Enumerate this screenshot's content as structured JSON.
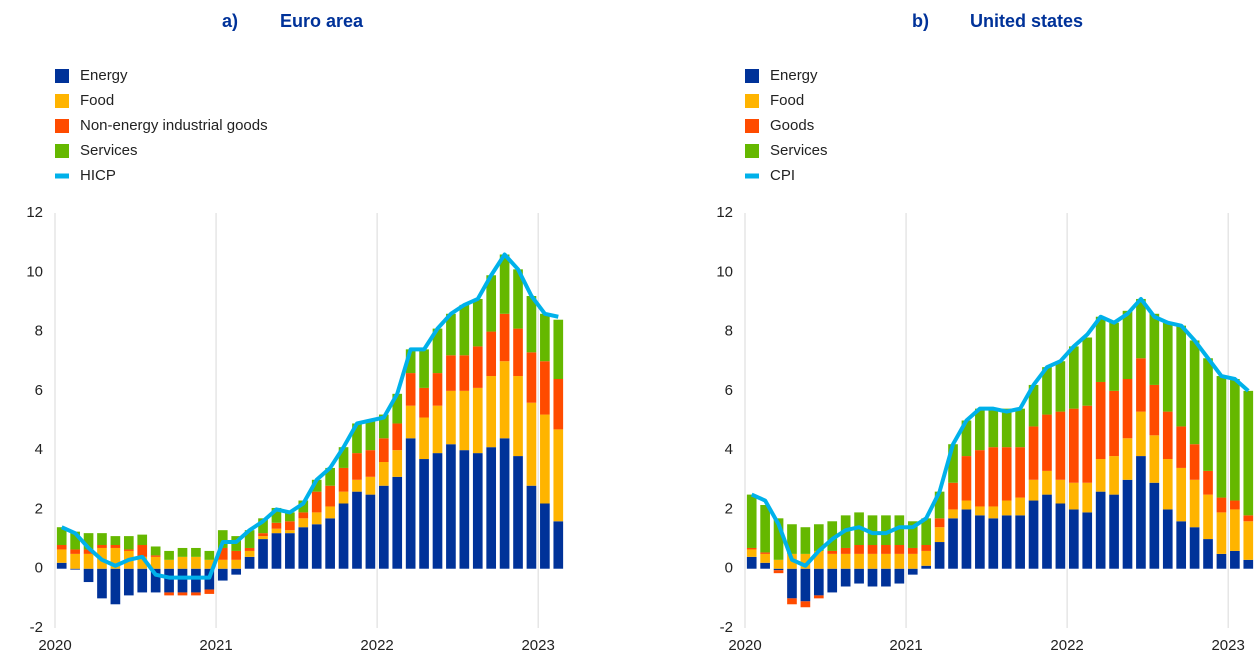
{
  "chart_data": [
    {
      "type": "bar",
      "label": "a)",
      "title": "Euro area",
      "stacked": true,
      "categories": [
        "2020",
        null,
        null,
        null,
        null,
        null,
        null,
        null,
        null,
        null,
        null,
        null,
        "2021",
        null,
        null,
        null,
        null,
        null,
        null,
        null,
        null,
        null,
        null,
        null,
        "2022",
        null,
        null,
        null,
        null,
        null,
        null,
        null,
        null,
        null,
        null,
        null,
        "2023",
        null
      ],
      "ylim": [
        -2,
        12
      ],
      "yticks": [
        -2,
        0,
        2,
        4,
        6,
        8,
        10,
        12
      ],
      "grid": "x",
      "series": [
        {
          "name": "Energy",
          "color": "#003299",
          "values": [
            0.2,
            -0.03,
            -0.45,
            -1.0,
            -1.2,
            -0.9,
            -0.8,
            -0.8,
            -0.8,
            -0.8,
            -0.8,
            -0.7,
            -0.4,
            -0.2,
            0.4,
            1.0,
            1.2,
            1.2,
            1.4,
            1.5,
            1.7,
            2.2,
            2.6,
            2.5,
            2.8,
            3.1,
            4.4,
            3.7,
            3.9,
            4.2,
            4.0,
            3.9,
            4.1,
            4.4,
            3.8,
            2.8,
            2.2,
            1.6
          ]
        },
        {
          "name": "Food",
          "color": "#ffb400",
          "values": [
            0.45,
            0.5,
            0.5,
            0.7,
            0.7,
            0.6,
            0.4,
            0.4,
            0.3,
            0.4,
            0.4,
            0.3,
            0.3,
            0.3,
            0.2,
            0.1,
            0.15,
            0.1,
            0.3,
            0.4,
            0.4,
            0.4,
            0.4,
            0.6,
            0.8,
            0.9,
            1.1,
            1.4,
            1.6,
            1.8,
            2.0,
            2.2,
            2.4,
            2.6,
            2.7,
            2.8,
            3.0,
            3.1
          ]
        },
        {
          "name": "Non-energy industrial goods",
          "color": "#ff4b00",
          "values": [
            0.15,
            0.15,
            0.15,
            0.1,
            0.1,
            0.05,
            0.4,
            0.05,
            -0.1,
            -0.1,
            -0.1,
            -0.15,
            0.4,
            0.3,
            0.1,
            0.1,
            0.2,
            0.3,
            0.2,
            0.7,
            0.7,
            0.8,
            0.9,
            0.9,
            0.8,
            0.9,
            1.1,
            1.0,
            1.1,
            1.2,
            1.2,
            1.4,
            1.5,
            1.6,
            1.6,
            1.7,
            1.8,
            1.7
          ]
        },
        {
          "name": "Services",
          "color": "#65b800",
          "values": [
            0.6,
            0.6,
            0.55,
            0.4,
            0.3,
            0.45,
            0.35,
            0.3,
            0.3,
            0.3,
            0.3,
            0.3,
            0.6,
            0.5,
            0.6,
            0.5,
            0.5,
            0.3,
            0.4,
            0.4,
            0.6,
            0.7,
            1.0,
            1.0,
            0.8,
            1.0,
            0.8,
            1.3,
            1.5,
            1.4,
            1.7,
            1.6,
            1.9,
            2.0,
            2.0,
            1.9,
            1.6,
            2.0
          ]
        },
        {
          "name": "HICP",
          "color": "#00b1ea",
          "type": "line",
          "values": [
            1.4,
            1.2,
            0.7,
            0.3,
            0.1,
            0.3,
            0.4,
            -0.2,
            -0.3,
            -0.3,
            -0.3,
            -0.3,
            0.9,
            0.9,
            1.3,
            1.6,
            2.0,
            1.9,
            2.2,
            3.0,
            3.4,
            4.1,
            4.9,
            5.0,
            5.1,
            5.9,
            7.4,
            7.4,
            8.1,
            8.6,
            8.9,
            9.1,
            9.9,
            10.6,
            10.1,
            9.2,
            8.6,
            8.5
          ]
        }
      ]
    },
    {
      "type": "bar",
      "label": "b)",
      "title": "United states",
      "stacked": true,
      "categories": [
        "2020",
        null,
        null,
        null,
        null,
        null,
        null,
        null,
        null,
        null,
        null,
        null,
        "2021",
        null,
        null,
        null,
        null,
        null,
        null,
        null,
        null,
        null,
        null,
        null,
        "2022",
        null,
        null,
        null,
        null,
        null,
        null,
        null,
        null,
        null,
        null,
        null,
        "2023",
        null
      ],
      "ylim": [
        -2,
        12
      ],
      "yticks": [
        -2,
        0,
        2,
        4,
        6,
        8,
        10,
        12
      ],
      "grid": "x",
      "series": [
        {
          "name": "Energy",
          "color": "#003299",
          "values": [
            0.4,
            0.2,
            -0.05,
            -1.0,
            -1.1,
            -0.9,
            -0.8,
            -0.6,
            -0.5,
            -0.6,
            -0.6,
            -0.5,
            -0.2,
            0.1,
            0.9,
            1.7,
            2.0,
            1.8,
            1.7,
            1.8,
            1.8,
            2.3,
            2.5,
            2.2,
            2.0,
            1.9,
            2.6,
            2.5,
            3.0,
            3.8,
            2.9,
            2.0,
            1.6,
            1.4,
            1.0,
            0.5,
            0.6,
            0.3
          ]
        },
        {
          "name": "Food",
          "color": "#ffb400",
          "values": [
            0.25,
            0.3,
            0.3,
            0.5,
            0.5,
            0.6,
            0.5,
            0.5,
            0.5,
            0.5,
            0.5,
            0.5,
            0.5,
            0.5,
            0.5,
            0.3,
            0.3,
            0.3,
            0.4,
            0.5,
            0.6,
            0.7,
            0.8,
            0.8,
            0.9,
            1.0,
            1.1,
            1.3,
            1.4,
            1.5,
            1.6,
            1.7,
            1.8,
            1.6,
            1.5,
            1.4,
            1.4,
            1.3
          ]
        },
        {
          "name": "Goods",
          "color": "#ff4b00",
          "values": [
            0.05,
            0.05,
            -0.1,
            -0.2,
            -0.2,
            -0.1,
            0.1,
            0.2,
            0.3,
            0.3,
            0.3,
            0.3,
            0.2,
            0.2,
            0.3,
            0.9,
            1.5,
            1.9,
            2.0,
            1.8,
            1.7,
            1.8,
            1.9,
            2.3,
            2.5,
            2.6,
            2.6,
            2.2,
            2.0,
            1.8,
            1.7,
            1.6,
            1.4,
            1.2,
            0.8,
            0.5,
            0.3,
            0.2
          ]
        },
        {
          "name": "Services",
          "color": "#65b800",
          "values": [
            1.8,
            1.6,
            1.4,
            1.0,
            0.9,
            0.9,
            1.0,
            1.1,
            1.1,
            1.0,
            1.0,
            1.0,
            0.9,
            0.9,
            0.9,
            1.3,
            1.2,
            1.4,
            1.3,
            1.3,
            1.3,
            1.4,
            1.6,
            1.7,
            2.1,
            2.3,
            2.2,
            2.3,
            2.3,
            2.0,
            2.4,
            3.0,
            3.4,
            3.5,
            3.8,
            4.1,
            4.1,
            4.2
          ]
        },
        {
          "name": "CPI",
          "color": "#00b1ea",
          "type": "line",
          "values": [
            2.5,
            2.3,
            1.5,
            0.3,
            0.1,
            0.6,
            1.0,
            1.3,
            1.4,
            1.2,
            1.2,
            1.4,
            1.4,
            1.7,
            2.6,
            4.2,
            5.0,
            5.4,
            5.4,
            5.3,
            5.4,
            6.2,
            6.8,
            7.0,
            7.5,
            7.9,
            8.5,
            8.3,
            8.6,
            9.1,
            8.5,
            8.3,
            8.2,
            7.7,
            7.1,
            6.5,
            6.4,
            6.0
          ]
        }
      ]
    }
  ]
}
